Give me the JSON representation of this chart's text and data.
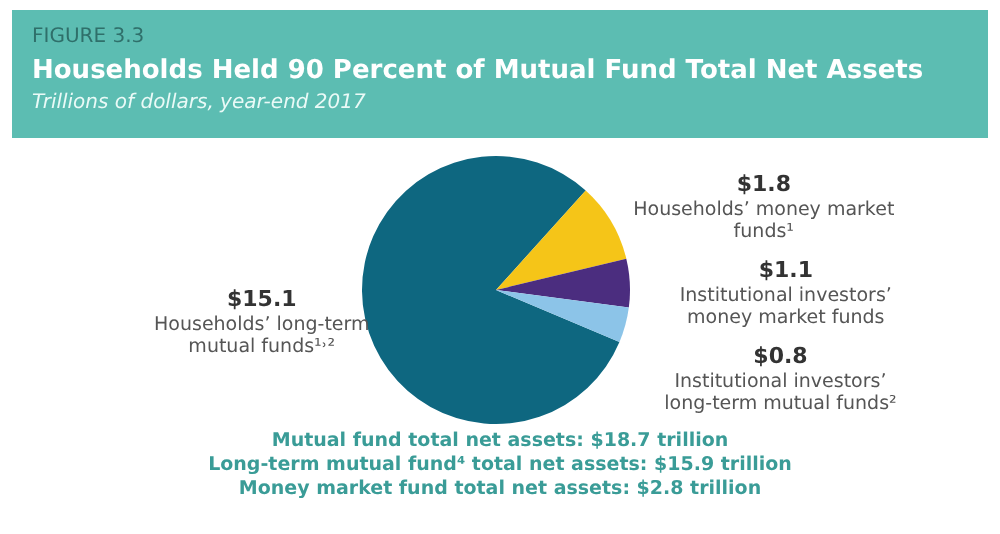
{
  "chart_data": {
    "type": "pie",
    "title": "Households Held 90 Percent of Mutual Fund Total Net Assets",
    "subtitle": "Trillions of dollars, year-end 2017",
    "categories": [
      "Households’ long-term mutual funds¹˒²",
      "Households’ money market funds¹",
      "Institutional investors’ money market funds",
      "Institutional investors’ long-term mutual funds²"
    ],
    "values": [
      15.1,
      1.8,
      1.1,
      0.8
    ],
    "value_labels": [
      "$15.1",
      "$1.8",
      "$1.1",
      "$0.8"
    ],
    "colors": [
      "#0e6780",
      "#f5c518",
      "#4b2d7f",
      "#8cc4e8"
    ],
    "annotations": [
      "FIGURE 3.3",
      "Mutual fund total net assets: $18.7 trillion",
      "Long-term mutual fund⁴ total net assets: $15.9 trillion",
      "Money market fund total net assets: $2.8 trillion"
    ]
  }
}
